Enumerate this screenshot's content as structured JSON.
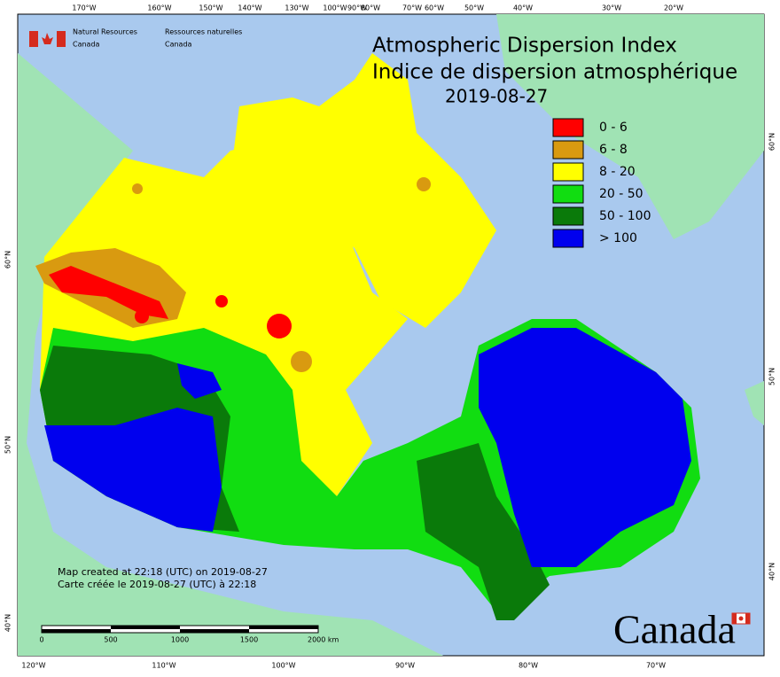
{
  "header": {
    "org_en": [
      "Natural Resources",
      "Canada"
    ],
    "org_fr": [
      "Ressources naturelles",
      "Canada"
    ]
  },
  "title": {
    "en": "Atmospheric Dispersion Index",
    "fr": "Indice de dispersion atmosphérique",
    "date": "2019-08-27"
  },
  "legend": [
    {
      "label": "0 - 6",
      "color": "#ff0000"
    },
    {
      "label": "6 - 8",
      "color": "#d99a10"
    },
    {
      "label": "8 - 20",
      "color": "#ffff00"
    },
    {
      "label": "20 - 50",
      "color": "#11dd11"
    },
    {
      "label": "50 - 100",
      "color": "#0a7a0a"
    },
    {
      "label": "> 100",
      "color": "#0000ee"
    }
  ],
  "graticule": {
    "top": [
      "170°W",
      "160°W",
      "150°W",
      "140°W",
      "130°W",
      "100°W",
      "90°W",
      "80°W",
      "70°W",
      "60°W",
      "50°W",
      "40°W",
      "30°W",
      "20°W"
    ],
    "bottom": [
      "120°W",
      "110°W",
      "100°W",
      "90°W",
      "80°W",
      "70°W"
    ],
    "left": [
      "60°N",
      "50°N",
      "40°N"
    ],
    "right": [
      "60°N",
      "50°N",
      "40°N"
    ]
  },
  "notes": [
    "Map created at 22:18 (UTC) on 2019-08-27",
    "Carte créée le 2019-08-27 (UTC) à 22:18"
  ],
  "scale_bar": {
    "labels": [
      "0",
      "500",
      "1000",
      "1500",
      "2000 km"
    ]
  },
  "wordmark": "Canada"
}
